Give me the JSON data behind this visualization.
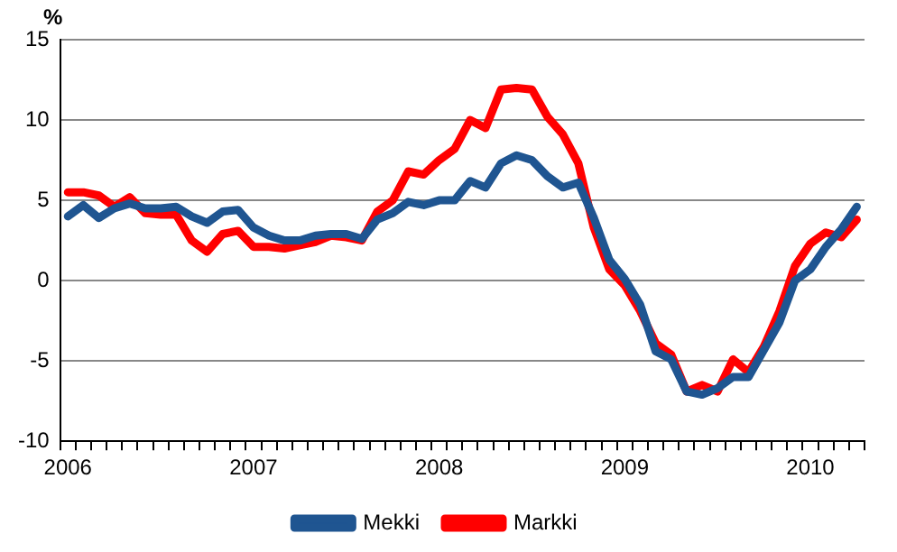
{
  "chart_data": {
    "type": "line",
    "ylabel": "%",
    "categories": [
      "2006",
      null,
      null,
      null,
      null,
      null,
      null,
      null,
      null,
      null,
      null,
      null,
      "2007",
      null,
      null,
      null,
      null,
      null,
      null,
      null,
      null,
      null,
      null,
      null,
      "2008",
      null,
      null,
      null,
      null,
      null,
      null,
      null,
      null,
      null,
      null,
      null,
      "2009",
      null,
      null,
      null,
      null,
      null,
      null,
      null,
      null,
      null,
      null,
      null,
      "2010",
      null,
      null,
      null
    ],
    "series": [
      {
        "name": "Mekki",
        "color": "#1f5591",
        "values": [
          4.0,
          4.7,
          3.9,
          4.5,
          4.8,
          4.5,
          4.5,
          4.6,
          4.0,
          3.6,
          4.3,
          4.4,
          3.3,
          2.8,
          2.5,
          2.5,
          2.8,
          2.9,
          2.9,
          2.6,
          3.8,
          4.2,
          4.9,
          4.7,
          5.0,
          5.0,
          6.2,
          5.8,
          7.3,
          7.8,
          7.5,
          6.5,
          5.8,
          6.1,
          3.9,
          1.3,
          0.1,
          -1.5,
          -4.4,
          -4.9,
          -6.9,
          -7.1,
          -6.7,
          -6.0,
          -6.0,
          -4.3,
          -2.6,
          0.0,
          0.7,
          2.1,
          3.2,
          4.6
        ]
      },
      {
        "name": "Markki",
        "color": "#ff0000",
        "values": [
          5.5,
          5.5,
          5.3,
          4.6,
          5.2,
          4.2,
          4.1,
          4.1,
          2.5,
          1.8,
          2.9,
          3.1,
          2.1,
          2.1,
          2.0,
          2.2,
          2.4,
          2.8,
          2.7,
          2.5,
          4.3,
          5.0,
          6.8,
          6.6,
          7.5,
          8.2,
          10.0,
          9.5,
          11.9,
          12.0,
          11.9,
          10.2,
          9.1,
          7.3,
          3.3,
          0.7,
          -0.3,
          -1.9,
          -3.9,
          -4.6,
          -6.9,
          -6.5,
          -6.9,
          -4.9,
          -5.7,
          -4.1,
          -1.9,
          0.9,
          2.3,
          3.0,
          2.7,
          3.8
        ]
      }
    ],
    "ylim": [
      -10,
      15
    ],
    "yticks": [
      -10,
      -5,
      0,
      5,
      10,
      15
    ],
    "grid": "y",
    "legend": "bottom",
    "marker": "none",
    "line_style": "solid"
  }
}
